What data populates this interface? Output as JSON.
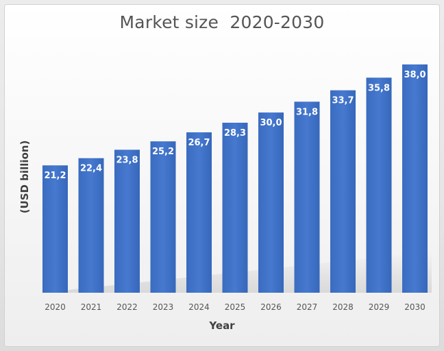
{
  "chart_data": {
    "type": "bar",
    "title": "Market size  2020-2030",
    "xlabel": "Year",
    "ylabel": "(USD billion)",
    "categories": [
      "2020",
      "2021",
      "2022",
      "2023",
      "2024",
      "2025",
      "2026",
      "2027",
      "2028",
      "2029",
      "2030"
    ],
    "values": [
      21.2,
      22.4,
      23.8,
      25.2,
      26.7,
      28.3,
      30.0,
      31.8,
      33.7,
      35.8,
      38.0
    ],
    "value_labels": [
      "21,2",
      "22,4",
      "23,8",
      "25,2",
      "26,7",
      "28,3",
      "30,0",
      "31,8",
      "33,7",
      "35,8",
      "38,0"
    ],
    "ylim": [
      0,
      38
    ],
    "grid": false,
    "legend": "none",
    "bar_color": "#3f73c8"
  }
}
